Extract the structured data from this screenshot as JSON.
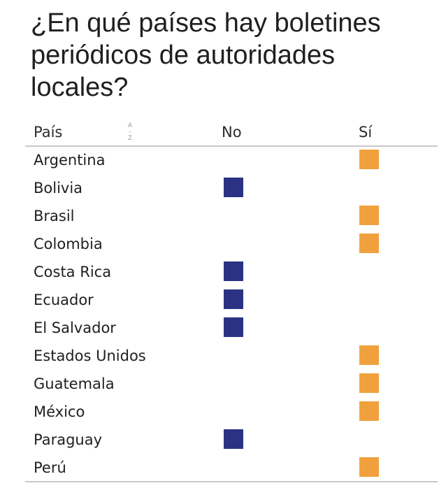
{
  "title": "¿En qué países hay boletines periódicos de autoridades locales?",
  "chart_data": {
    "type": "table",
    "columns": {
      "country": "País",
      "no": "No",
      "yes": "Sí"
    },
    "rows": [
      {
        "country": "Argentina",
        "value": "Sí"
      },
      {
        "country": "Bolivia",
        "value": "No"
      },
      {
        "country": "Brasil",
        "value": "Sí"
      },
      {
        "country": "Colombia",
        "value": "Sí"
      },
      {
        "country": "Costa Rica",
        "value": "No"
      },
      {
        "country": "Ecuador",
        "value": "No"
      },
      {
        "country": "El Salvador",
        "value": "No"
      },
      {
        "country": "Estados Unidos",
        "value": "Sí"
      },
      {
        "country": "Guatemala",
        "value": "Sí"
      },
      {
        "country": "México",
        "value": "Sí"
      },
      {
        "country": "Paraguay",
        "value": "No"
      },
      {
        "country": "Perú",
        "value": "Sí"
      }
    ],
    "colors": {
      "no": "#2b3284",
      "yes": "#f0a13d"
    },
    "sort_icon": "sort-alphabetical-icon"
  }
}
